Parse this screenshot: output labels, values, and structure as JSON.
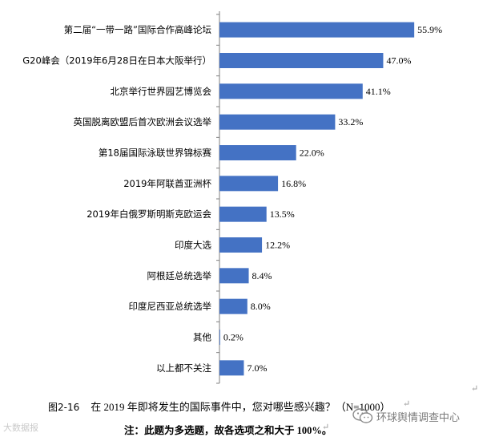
{
  "chart_data": {
    "type": "bar",
    "orientation": "horizontal",
    "categories": [
      "第二届“一带一路”国际合作高峰论坛",
      "G20峰会（2019年6月28日在日本大阪举行）",
      "北京举行世界园艺博览会",
      "英国脱离欧盟后首次欧洲会议选举",
      "第18届国际泳联世界锦标赛",
      "2019年阿联酋亚洲杯",
      "2019年白俄罗斯明斯克欧运会",
      "印度大选",
      "阿根廷总统选举",
      "印度尼西亚总统选举",
      "其他",
      "以上都不关注"
    ],
    "values": [
      55.9,
      47.0,
      41.1,
      33.2,
      22.0,
      16.8,
      13.5,
      12.2,
      8.4,
      8.0,
      0.2,
      7.0
    ],
    "value_labels": [
      "55.9%",
      "47.0%",
      "41.1%",
      "33.2%",
      "22.0%",
      "16.8%",
      "13.5%",
      "12.2%",
      "8.4%",
      "8.0%",
      "0.2%",
      "7.0%"
    ],
    "xlim": [
      0,
      60
    ],
    "grid": false,
    "bar_color": "#4472C4"
  },
  "caption": {
    "figure_number": "图2-16",
    "text": "在 2019 年即将发生的国际事件中，您对哪些感兴趣？（N=1000）"
  },
  "note": "注：此题为多选题，故各选项之和大于 100%。",
  "paragraph_mark": "↵",
  "watermarks": {
    "left": "大数据报",
    "right": "环球舆情调查中心"
  }
}
